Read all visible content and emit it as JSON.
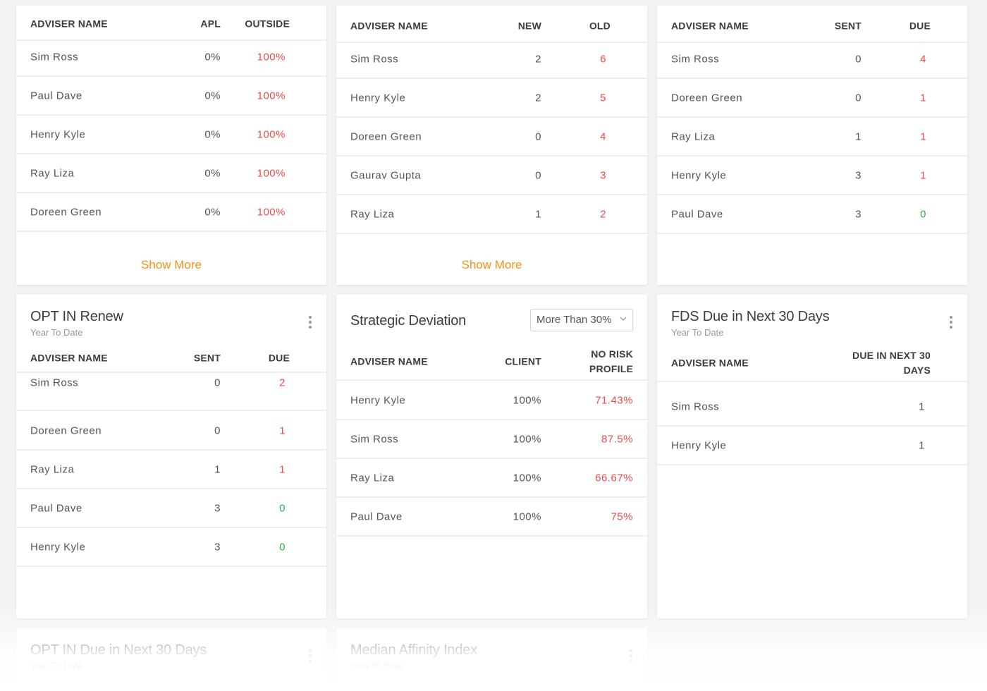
{
  "cards": [
    {
      "headers": [
        "ADVISER NAME",
        "APL",
        "OUTSIDE"
      ],
      "rows": [
        [
          "Sim Ross",
          "0%",
          "100%"
        ],
        [
          "Paul Dave",
          "0%",
          "100%"
        ],
        [
          "Henry Kyle",
          "0%",
          "100%"
        ],
        [
          "Ray Liza",
          "0%",
          "100%"
        ],
        [
          "Doreen Green",
          "0%",
          "100%"
        ]
      ],
      "show_more": "Show More"
    },
    {
      "headers": [
        "ADVISER NAME",
        "NEW",
        "OLD"
      ],
      "rows": [
        [
          "Sim Ross",
          "2",
          "6"
        ],
        [
          "Henry Kyle",
          "2",
          "5"
        ],
        [
          "Doreen Green",
          "0",
          "4"
        ],
        [
          "Gaurav Gupta",
          "0",
          "3"
        ],
        [
          "Ray Liza",
          "1",
          "2"
        ]
      ],
      "show_more": "Show More"
    },
    {
      "headers": [
        "ADVISER NAME",
        "SENT",
        "DUE"
      ],
      "rows": [
        [
          "Sim Ross",
          "0",
          "4"
        ],
        [
          "Doreen Green",
          "0",
          "1"
        ],
        [
          "Ray Liza",
          "1",
          "1"
        ],
        [
          "Henry Kyle",
          "3",
          "1"
        ],
        [
          "Paul Dave",
          "3",
          "0"
        ]
      ]
    },
    {
      "title": "OPT IN Renew",
      "subtitle": "Year To Date",
      "headers": [
        "ADVISER NAME",
        "SENT",
        "DUE"
      ],
      "rows": [
        [
          "Sim Ross",
          "0",
          "2"
        ],
        [
          "Doreen Green",
          "0",
          "1"
        ],
        [
          "Ray Liza",
          "1",
          "1"
        ],
        [
          "Paul Dave",
          "3",
          "0"
        ],
        [
          "Henry Kyle",
          "3",
          "0"
        ]
      ]
    },
    {
      "title": "Strategic Deviation",
      "filter": "More Than 30%",
      "headers": [
        "ADVISER NAME",
        "CLIENT",
        "NO RISK PROFILE"
      ],
      "rows": [
        [
          "Henry Kyle",
          "100%",
          "71.43%"
        ],
        [
          "Sim Ross",
          "100%",
          "87.5%"
        ],
        [
          "Ray Liza",
          "100%",
          "66.67%"
        ],
        [
          "Paul Dave",
          "100%",
          "75%"
        ]
      ]
    },
    {
      "title": "FDS Due in Next 30 Days",
      "subtitle": "Year To Date",
      "headers": [
        "ADVISER NAME",
        "DUE IN NEXT 30 DAYS"
      ],
      "rows": [
        [
          "Sim Ross",
          "1"
        ],
        [
          "Henry Kyle",
          "1"
        ]
      ]
    },
    {
      "title": "OPT IN Due in Next 30 Days",
      "subtitle": "Year To Date"
    },
    {
      "title": "Median Affinity Index",
      "subtitle": "Year To Date"
    }
  ],
  "colors": {
    "accent": "#f39217",
    "negative": "#ef4a4a",
    "positive": "#2eb34a"
  }
}
